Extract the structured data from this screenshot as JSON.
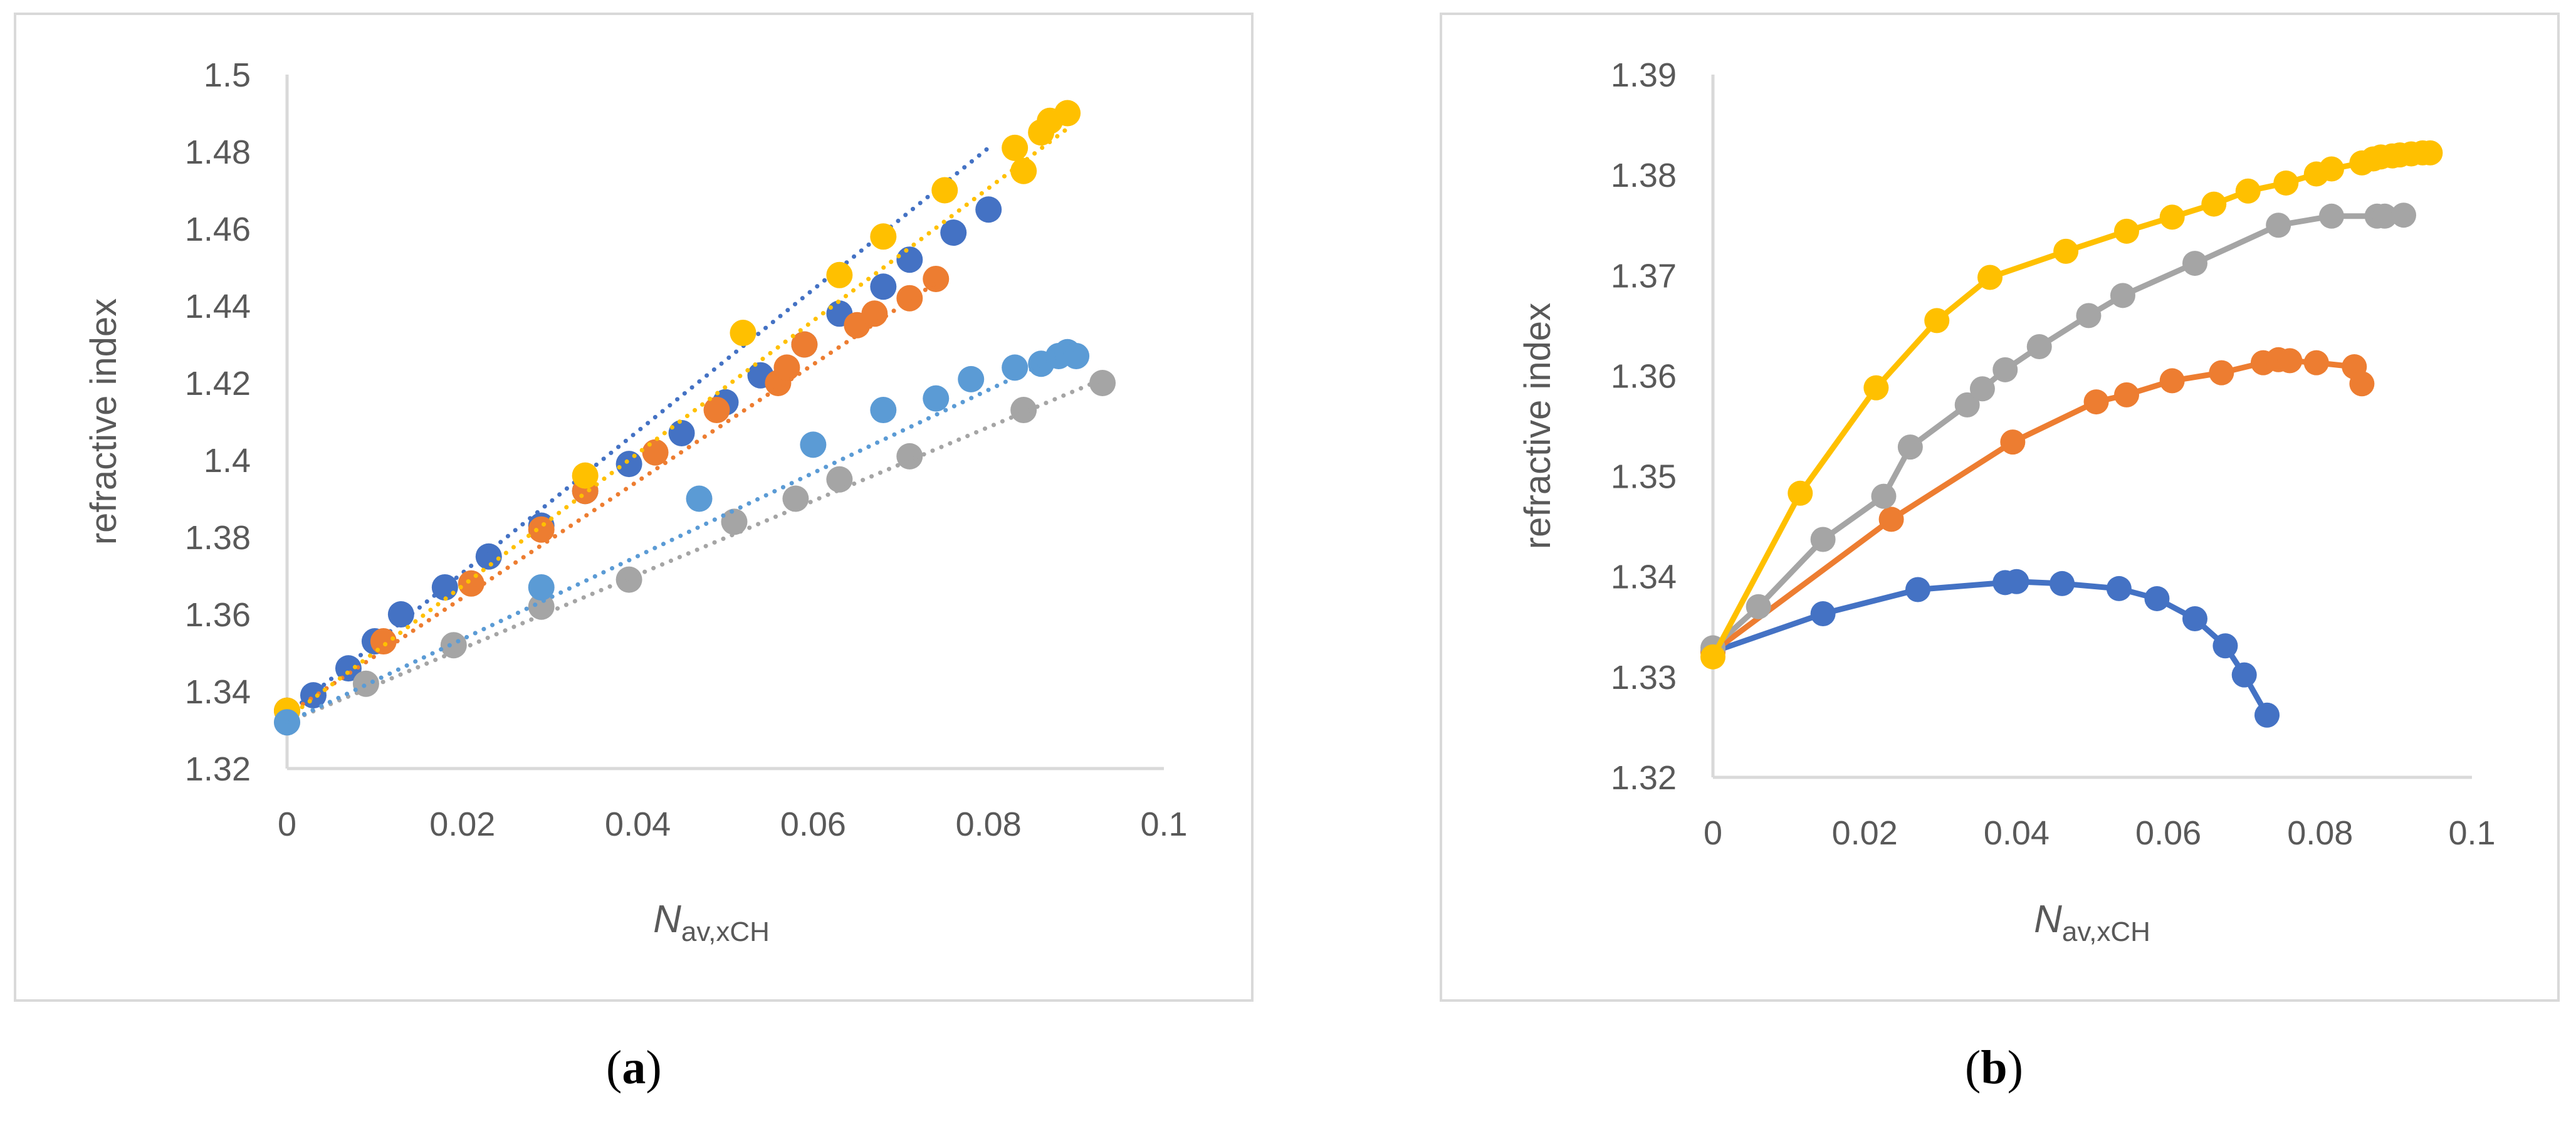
{
  "colors": {
    "dark_blue": "#4472C4",
    "orange": "#ED7D31",
    "gray": "#A5A5A5",
    "yellow": "#FFC000",
    "light_blue": "#5B9BD5",
    "axis": "#d9d9d9",
    "text": "#595959"
  },
  "captions": {
    "a": {
      "open": "(",
      "letter": "a",
      "close": ")"
    },
    "b": {
      "open": "(",
      "letter": "b",
      "close": ")"
    }
  },
  "chart_data": [
    {
      "id": "a",
      "type": "scatter",
      "title": "",
      "xlabel": {
        "main": "N",
        "sub": "av,xCH"
      },
      "ylabel": "refractive index",
      "xlim": [
        0,
        0.1
      ],
      "ylim": [
        1.32,
        1.5
      ],
      "xticks": [
        "0",
        "0.02",
        "0.04",
        "0.06",
        "0.08",
        "0.1"
      ],
      "yticks": [
        "1.32",
        "1.34",
        "1.36",
        "1.38",
        "1.4",
        "1.42",
        "1.44",
        "1.46",
        "1.48",
        "1.5"
      ],
      "trendline": "linear-dotted",
      "series": [
        {
          "color": "dark_blue",
          "x": [
            0,
            0.003,
            0.007,
            0.01,
            0.013,
            0.018,
            0.023,
            0.029,
            0.034,
            0.039,
            0.045,
            0.05,
            0.054,
            0.059,
            0.063,
            0.068,
            0.071,
            0.076,
            0.08
          ],
          "y": [
            1.335,
            1.339,
            1.346,
            1.353,
            1.36,
            1.367,
            1.375,
            1.383,
            1.392,
            1.399,
            1.407,
            1.415,
            1.422,
            1.43,
            1.438,
            1.445,
            1.452,
            1.459,
            1.465
          ],
          "fit": [
            1.334,
            1.481
          ]
        },
        {
          "color": "orange",
          "x": [
            0,
            0.011,
            0.021,
            0.029,
            0.034,
            0.042,
            0.049,
            0.056,
            0.057,
            0.059,
            0.065,
            0.067,
            0.071,
            0.074
          ],
          "y": [
            1.335,
            1.353,
            1.368,
            1.382,
            1.392,
            1.402,
            1.413,
            1.42,
            1.424,
            1.43,
            1.435,
            1.438,
            1.442,
            1.447
          ],
          "fit": [
            1.334,
            1.446
          ]
        },
        {
          "color": "gray",
          "x": [
            0,
            0.009,
            0.019,
            0.029,
            0.039,
            0.051,
            0.058,
            0.063,
            0.071,
            0.084,
            0.093
          ],
          "y": [
            1.332,
            1.342,
            1.352,
            1.362,
            1.369,
            1.384,
            1.39,
            1.395,
            1.401,
            1.413,
            1.42
          ],
          "fit": [
            1.332,
            1.421
          ]
        },
        {
          "color": "yellow",
          "x": [
            0,
            0.034,
            0.052,
            0.063,
            0.068,
            0.075,
            0.083,
            0.084,
            0.086,
            0.087,
            0.089
          ],
          "y": [
            1.335,
            1.396,
            1.433,
            1.448,
            1.458,
            1.47,
            1.481,
            1.475,
            1.485,
            1.488,
            1.49
          ],
          "fit": [
            1.333,
            1.486
          ]
        },
        {
          "color": "light_blue",
          "x": [
            0,
            0.029,
            0.047,
            0.06,
            0.068,
            0.074,
            0.078,
            0.083,
            0.086,
            0.088,
            0.089,
            0.09
          ],
          "y": [
            1.332,
            1.367,
            1.39,
            1.404,
            1.413,
            1.416,
            1.421,
            1.424,
            1.425,
            1.427,
            1.428,
            1.427
          ],
          "fit": [
            1.332,
            1.429
          ]
        }
      ]
    },
    {
      "id": "b",
      "type": "line",
      "title": "",
      "xlabel": {
        "main": "N",
        "sub": "av,xCH"
      },
      "ylabel": "refractive index",
      "xlim": [
        0,
        0.1
      ],
      "ylim": [
        1.32,
        1.39
      ],
      "xticks": [
        "0",
        "0.02",
        "0.04",
        "0.06",
        "0.08",
        "0.1"
      ],
      "yticks": [
        "1.32",
        "1.33",
        "1.34",
        "1.35",
        "1.36",
        "1.37",
        "1.38",
        "1.39"
      ],
      "series": [
        {
          "color": "dark_blue",
          "x": [
            0,
            0.0145,
            0.027,
            0.0385,
            0.04,
            0.046,
            0.0535,
            0.0585,
            0.0635,
            0.0675,
            0.07,
            0.073
          ],
          "y": [
            1.3325,
            1.3363,
            1.3387,
            1.3394,
            1.3395,
            1.3393,
            1.3388,
            1.3378,
            1.3358,
            1.3331,
            1.3302,
            1.3262
          ]
        },
        {
          "color": "orange",
          "x": [
            0,
            0.0235,
            0.0395,
            0.0505,
            0.0545,
            0.0605,
            0.067,
            0.0725,
            0.0745,
            0.076,
            0.0795,
            0.0845,
            0.0855
          ],
          "y": [
            1.3325,
            1.3457,
            1.3534,
            1.3574,
            1.3581,
            1.3595,
            1.3603,
            1.3613,
            1.3616,
            1.3615,
            1.3613,
            1.3609,
            1.3592
          ]
        },
        {
          "color": "gray",
          "x": [
            0,
            0.006,
            0.0145,
            0.0225,
            0.026,
            0.0335,
            0.0355,
            0.0385,
            0.043,
            0.0495,
            0.054,
            0.0635,
            0.0745,
            0.0815,
            0.0875,
            0.0885,
            0.091
          ],
          "y": [
            1.3329,
            1.337,
            1.3437,
            1.348,
            1.3529,
            1.3571,
            1.3587,
            1.3606,
            1.3629,
            1.366,
            1.368,
            1.3712,
            1.375,
            1.3759,
            1.3759,
            1.3759,
            1.376
          ]
        },
        {
          "color": "yellow",
          "x": [
            0,
            0.0115,
            0.0215,
            0.0295,
            0.0365,
            0.0465,
            0.0545,
            0.0605,
            0.066,
            0.0705,
            0.0755,
            0.0795,
            0.0815,
            0.0855,
            0.087,
            0.088,
            0.0895,
            0.0905,
            0.092,
            0.0935,
            0.0945
          ],
          "y": [
            1.332,
            1.3483,
            1.3588,
            1.3655,
            1.3698,
            1.3724,
            1.3744,
            1.3758,
            1.3771,
            1.3784,
            1.3792,
            1.3801,
            1.3806,
            1.3812,
            1.3816,
            1.3818,
            1.3819,
            1.382,
            1.3821,
            1.3822,
            1.3822
          ]
        }
      ]
    }
  ]
}
